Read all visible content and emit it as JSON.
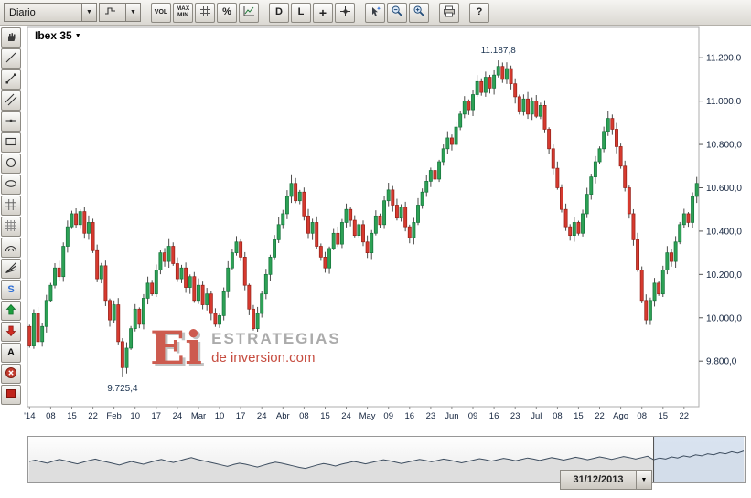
{
  "icons": {
    "dropdown_arrow": "▼"
  },
  "toolbar": {
    "interval_value": "Diario",
    "buttons": {
      "vol": "VOL",
      "max": "MAX",
      "min": "MIN",
      "percent": "%",
      "d": "D",
      "l": "L",
      "plus": "+",
      "help": "?"
    }
  },
  "left_toolbar": {
    "s_tool": "S",
    "text_tool": "A"
  },
  "watermark": {
    "logo": "Ei",
    "line1": "ESTRATEGIAS",
    "line2": "de inversion.com"
  },
  "overview_controls": {
    "date_value": "31/12/2013"
  },
  "chart_data": {
    "type": "candlestick",
    "symbol": "Ibex 35",
    "interval": "Diario",
    "ylim": [
      9590,
      11340
    ],
    "y_tick_values": [
      11200,
      11000,
      10800,
      10600,
      10400,
      10200,
      10000,
      9800
    ],
    "y_tick_labels": [
      "11.200,0",
      "11.000,0",
      "10.800,0",
      "10.600,0",
      "10.400,0",
      "10.200,0",
      "10.000,0",
      "9.800,0"
    ],
    "x_tick_labels": [
      "'14",
      "08",
      "15",
      "22",
      "Feb",
      "10",
      "17",
      "24",
      "Mar",
      "10",
      "17",
      "24",
      "Abr",
      "08",
      "15",
      "24",
      "May",
      "09",
      "16",
      "23",
      "Jun",
      "09",
      "16",
      "23",
      "Jul",
      "08",
      "15",
      "22",
      "Ago",
      "08",
      "15",
      "22"
    ],
    "x_tick_day_step": 5,
    "first_open": 9960,
    "closes": [
      9870,
      10020,
      9890,
      9960,
      10080,
      10150,
      10230,
      10190,
      10330,
      10420,
      10480,
      10430,
      10490,
      10390,
      10440,
      10310,
      10180,
      10240,
      10080,
      9990,
      10060,
      9890,
      9770,
      9860,
      9950,
      10040,
      9970,
      10090,
      10160,
      10110,
      10220,
      10300,
      10260,
      10330,
      10250,
      10180,
      10230,
      10140,
      10190,
      10080,
      10150,
      10060,
      10110,
      10020,
      9970,
      10010,
      10120,
      10230,
      10300,
      10350,
      10280,
      10150,
      10040,
      9950,
      10020,
      10110,
      10200,
      10280,
      10360,
      10430,
      10480,
      10560,
      10620,
      10540,
      10580,
      10470,
      10390,
      10440,
      10330,
      10280,
      10230,
      10320,
      10390,
      10340,
      10440,
      10500,
      10450,
      10380,
      10430,
      10350,
      10300,
      10390,
      10470,
      10430,
      10540,
      10590,
      10520,
      10460,
      10510,
      10420,
      10370,
      10440,
      10520,
      10580,
      10630,
      10680,
      10640,
      10720,
      10780,
      10830,
      10800,
      10880,
      10940,
      11000,
      10960,
      11030,
      11090,
      11040,
      11110,
      11060,
      11120,
      11160,
      11100,
      11150,
      11080,
      11020,
      10950,
      11010,
      10940,
      11000,
      10930,
      10980,
      10870,
      10780,
      10690,
      10600,
      10500,
      10420,
      10380,
      10440,
      10390,
      10480,
      10570,
      10650,
      10720,
      10780,
      10860,
      10920,
      10870,
      10790,
      10700,
      10600,
      10480,
      10360,
      10220,
      10080,
      9990,
      10080,
      10160,
      10110,
      10220,
      10300,
      10260,
      10350,
      10430,
      10480,
      10440,
      10560,
      10620
    ],
    "wick_overrides": {
      "22": {
        "low": 9725.4
      },
      "62": {
        "high": 10662
      },
      "111": {
        "high": 11187.8
      },
      "146": {
        "low": 9968
      }
    },
    "annotations": [
      {
        "text": "11.187,8",
        "day": 111,
        "value": 11187.8,
        "position": "above"
      },
      {
        "text": "9.725,4",
        "day": 22,
        "value": 9725.4,
        "position": "below"
      }
    ],
    "high_value": 11187.8,
    "low_value": 9725.4,
    "up_color": "#2da155",
    "up_border": "#14733a",
    "down_color": "#d63a2f",
    "down_border": "#951f17",
    "overview": {
      "divider_index": 104,
      "values": [
        0.5,
        0.54,
        0.49,
        0.45,
        0.51,
        0.56,
        0.52,
        0.47,
        0.43,
        0.48,
        0.53,
        0.57,
        0.52,
        0.48,
        0.44,
        0.4,
        0.45,
        0.5,
        0.46,
        0.42,
        0.47,
        0.52,
        0.56,
        0.51,
        0.47,
        0.52,
        0.57,
        0.61,
        0.56,
        0.52,
        0.48,
        0.44,
        0.4,
        0.36,
        0.41,
        0.45,
        0.42,
        0.38,
        0.34,
        0.39,
        0.44,
        0.48,
        0.45,
        0.41,
        0.37,
        0.33,
        0.3,
        0.35,
        0.4,
        0.44,
        0.41,
        0.37,
        0.42,
        0.46,
        0.5,
        0.47,
        0.43,
        0.47,
        0.51,
        0.55,
        0.52,
        0.48,
        0.44,
        0.48,
        0.52,
        0.56,
        0.53,
        0.49,
        0.53,
        0.57,
        0.54,
        0.5,
        0.46,
        0.5,
        0.54,
        0.58,
        0.55,
        0.51,
        0.55,
        0.59,
        0.56,
        0.52,
        0.56,
        0.6,
        0.57,
        0.53,
        0.57,
        0.61,
        0.58,
        0.54,
        0.58,
        0.62,
        0.59,
        0.55,
        0.59,
        0.63,
        0.6,
        0.56,
        0.6,
        0.64,
        0.61,
        0.57,
        0.61,
        0.65,
        0.55,
        0.6,
        0.57,
        0.63,
        0.6,
        0.66,
        0.63,
        0.69,
        0.66,
        0.72,
        0.69,
        0.75,
        0.72,
        0.78,
        0.74,
        0.8
      ]
    }
  }
}
